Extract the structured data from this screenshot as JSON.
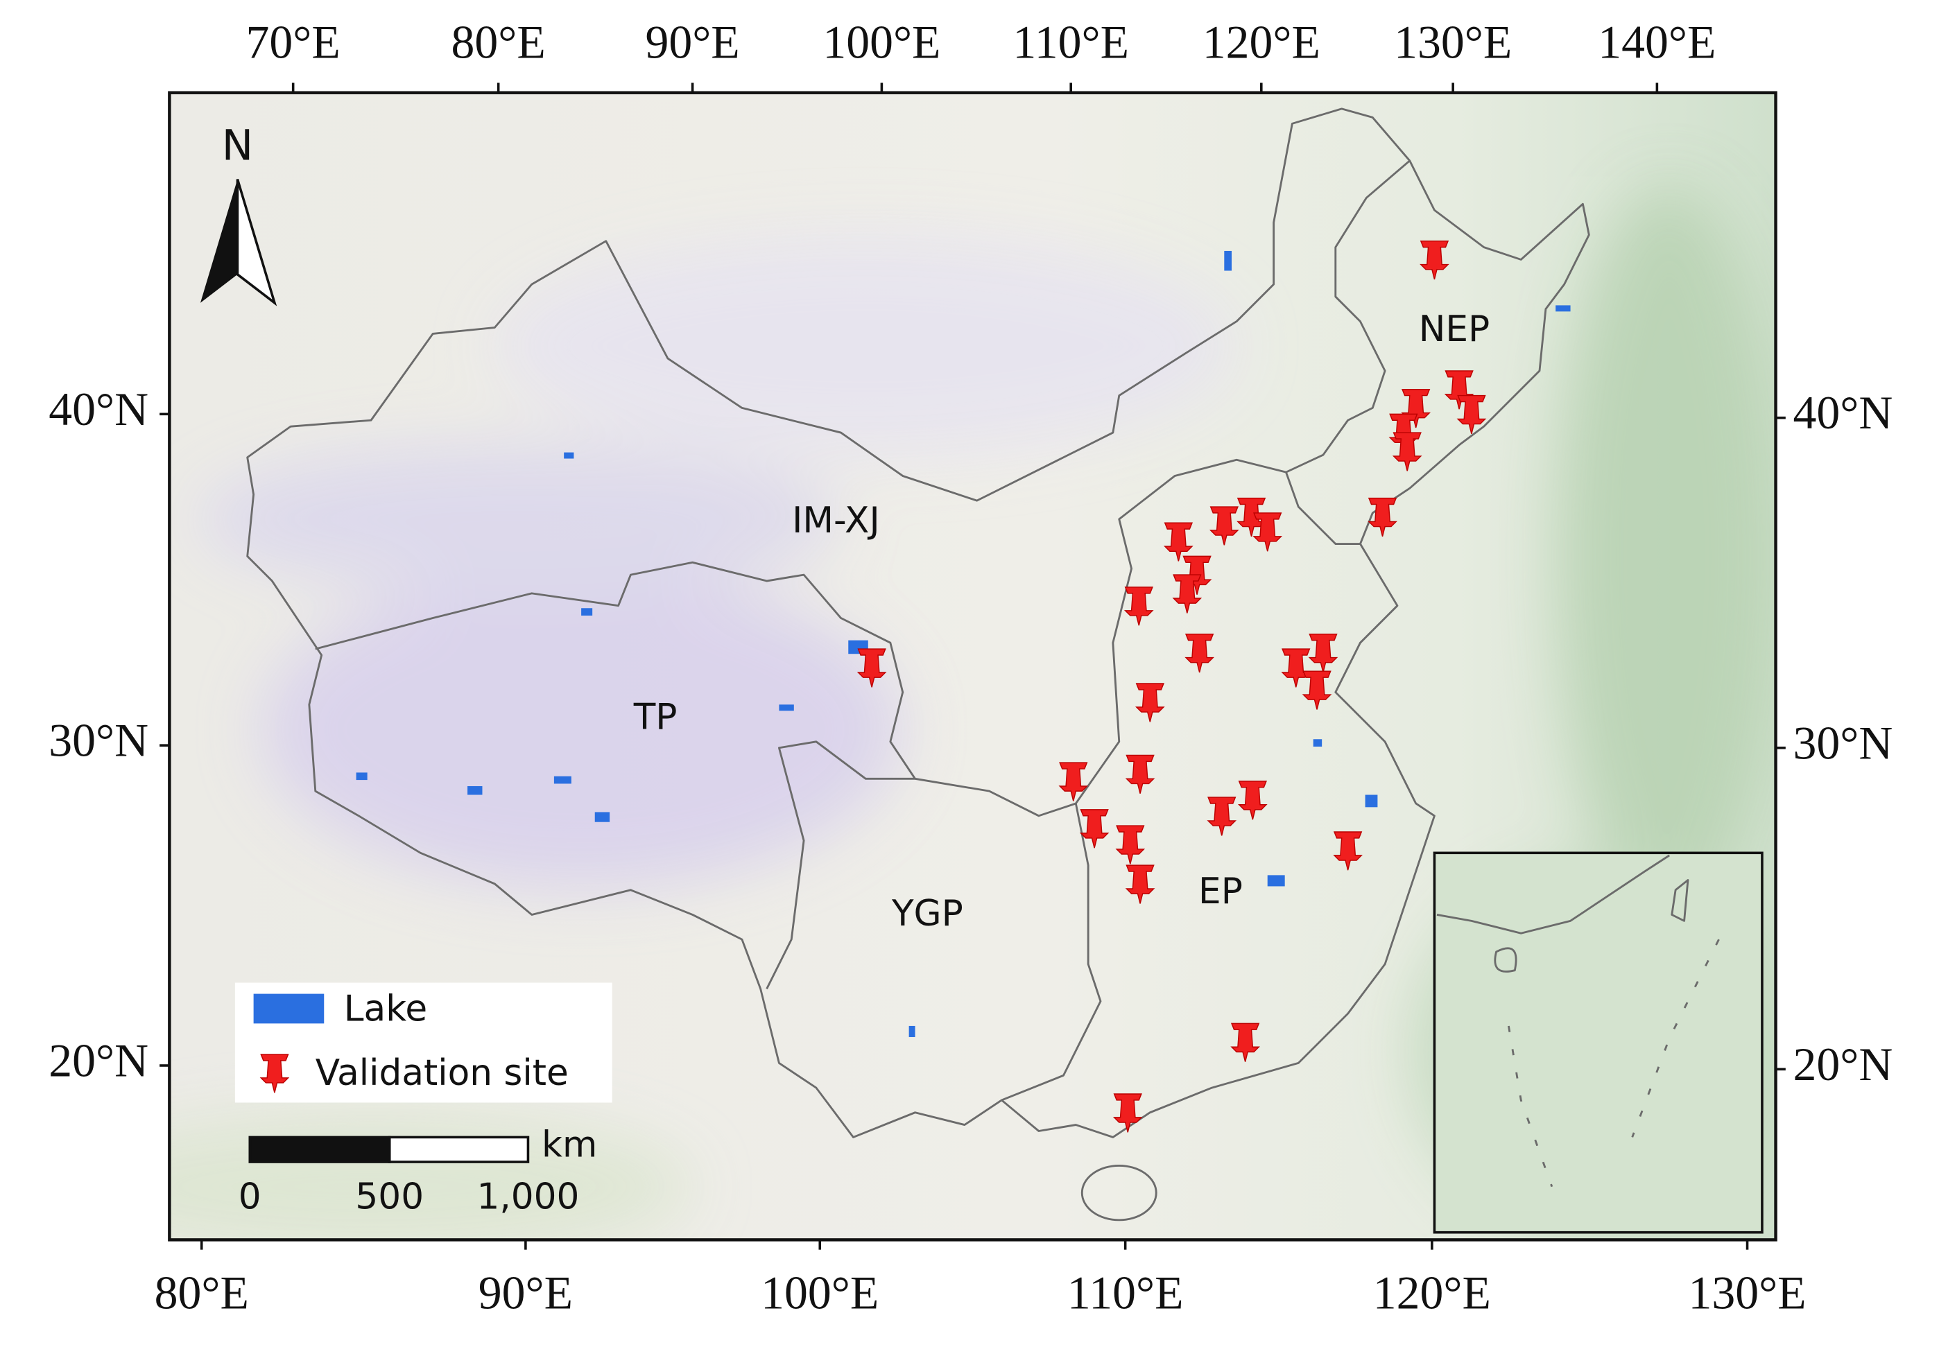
{
  "axes": {
    "top": [
      "70°E",
      "80°E",
      "90°E",
      "100°E",
      "110°E",
      "120°E",
      "130°E",
      "140°E"
    ],
    "bottom": [
      "80°E",
      "90°E",
      "100°E",
      "110°E",
      "120°E",
      "130°E"
    ],
    "left": [
      "40°N",
      "30°N",
      "20°N"
    ],
    "right": [
      "40°N",
      "30°N",
      "20°N"
    ]
  },
  "north_arrow": "N",
  "regions": [
    "NEP",
    "IM-XJ",
    "TP",
    "YGP",
    "EP"
  ],
  "legend": {
    "lake": "Lake",
    "site": "Validation site"
  },
  "scale_bar": {
    "unit": "km",
    "labels": [
      "0",
      "500",
      "1,000"
    ]
  }
}
